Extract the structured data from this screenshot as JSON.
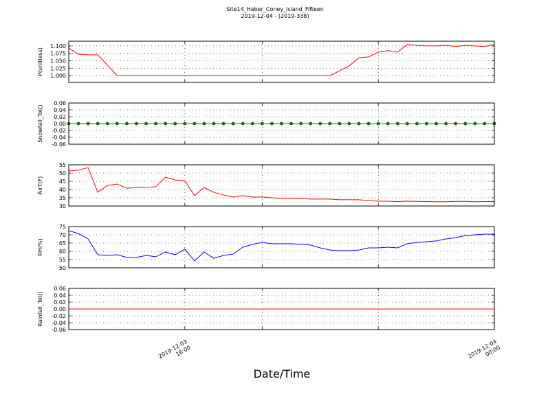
{
  "chart_data": {
    "type": "line",
    "title": "Site14_Haber_Coney_Island_Fifteen",
    "subtitle": "2019-12-04 - (2019-338)",
    "xlabel": "Date/Time",
    "x": [
      "2019-12-03 13:00",
      "2019-12-03 13:15",
      "2019-12-03 13:30",
      "2019-12-03 13:45",
      "2019-12-03 14:00",
      "2019-12-03 14:15",
      "2019-12-03 14:30",
      "2019-12-03 14:45",
      "2019-12-03 15:00",
      "2019-12-03 15:15",
      "2019-12-03 15:30",
      "2019-12-03 15:45",
      "2019-12-03 16:00",
      "2019-12-03 16:15",
      "2019-12-03 16:30",
      "2019-12-03 16:45",
      "2019-12-03 17:00",
      "2019-12-03 17:15",
      "2019-12-03 17:30",
      "2019-12-03 17:45",
      "2019-12-03 18:00",
      "2019-12-03 18:15",
      "2019-12-03 18:30",
      "2019-12-03 18:45",
      "2019-12-03 19:00",
      "2019-12-03 19:15",
      "2019-12-03 19:30",
      "2019-12-03 19:45",
      "2019-12-03 20:00",
      "2019-12-03 20:15",
      "2019-12-03 20:30",
      "2019-12-03 20:45",
      "2019-12-03 21:00",
      "2019-12-03 21:15",
      "2019-12-03 21:30",
      "2019-12-03 21:45",
      "2019-12-03 22:00",
      "2019-12-03 22:15",
      "2019-12-03 22:30",
      "2019-12-03 22:45",
      "2019-12-03 23:00",
      "2019-12-03 23:15",
      "2019-12-03 23:30",
      "2019-12-03 23:45",
      "2019-12-04 00:00"
    ],
    "xlim": [
      "2019-12-03 13:00",
      "2019-12-04 00:00"
    ],
    "xticks": [
      "2019-12-03 16:00",
      {
        "value": "2019-12-03 18:00",
        "label": null
      },
      {
        "value": "2019-12-03 21:00",
        "label": null
      },
      "2019-12-04 00:00"
    ],
    "grid": true,
    "panels": [
      {
        "type": "line",
        "ylabel": "P(unitless)",
        "ylim": [
          0.977,
          1.116
        ],
        "yticks": [
          {
            "value": 1.0,
            "label": "1.000"
          },
          {
            "value": 1.025,
            "label": "1.025"
          },
          {
            "value": 1.05,
            "label": "1.050"
          },
          {
            "value": 1.075,
            "label": "1.075"
          },
          {
            "value": 1.1,
            "label": "1.100"
          }
        ],
        "series": [
          {
            "color": "#ff0000",
            "marker": null,
            "values": [
              1.093,
              1.072,
              1.07,
              1.07,
              1.035,
              1.0,
              1.0,
              1.0,
              1.0,
              1.0,
              1.0,
              1.0,
              1.0,
              1.0,
              1.0,
              1.0,
              1.0,
              1.0,
              1.0,
              1.0,
              1.0,
              1.0,
              1.0,
              1.0,
              1.0,
              1.0,
              1.0,
              1.0,
              1.016,
              1.033,
              1.06,
              1.063,
              1.079,
              1.084,
              1.079,
              1.105,
              1.102,
              1.1,
              1.1,
              1.102,
              1.098,
              1.102,
              1.1,
              1.098,
              1.105
            ]
          }
        ]
      },
      {
        "type": "line",
        "ylabel": "Snowfall_Tot()",
        "ylim": [
          -0.06,
          0.06
        ],
        "yticks": [
          {
            "value": -0.06,
            "label": "-0.06"
          },
          {
            "value": -0.04,
            "label": "-0.04"
          },
          {
            "value": -0.02,
            "label": "-0.02"
          },
          {
            "value": 0,
            "label": "0.00"
          },
          {
            "value": 0.02,
            "label": "0.02"
          },
          {
            "value": 0.04,
            "label": "0.04"
          },
          {
            "value": 0.06,
            "label": "0.06"
          }
        ],
        "series": [
          {
            "color": "#008000",
            "marker": "o",
            "values": [
              0,
              0,
              0,
              0,
              0,
              0,
              0,
              0,
              0,
              0,
              0,
              0,
              0,
              0,
              0,
              0,
              0,
              0,
              0,
              0,
              0,
              0,
              0,
              0,
              0,
              0,
              0,
              0,
              0,
              0,
              0,
              0,
              0,
              0,
              0,
              0,
              0,
              0,
              0,
              0,
              0,
              0,
              0,
              0,
              0
            ]
          }
        ]
      },
      {
        "type": "line",
        "ylabel": "AirT(F)",
        "ylim": [
          30,
          55
        ],
        "yticks": [
          30,
          35,
          40,
          45,
          50,
          55
        ],
        "series": [
          {
            "color": "#ff0000",
            "marker": null,
            "values": [
              51.3,
              51.7,
              53.3,
              38.3,
              42.5,
              43.3,
              40.8,
              41.2,
              41.2,
              41.7,
              47.5,
              45.8,
              45.4,
              36.3,
              41.2,
              38.3,
              36.7,
              35.4,
              36.3,
              35.4,
              35.4,
              35.0,
              34.6,
              34.6,
              34.6,
              34.2,
              34.2,
              34.2,
              33.8,
              33.8,
              33.8,
              33.3,
              32.9,
              32.9,
              32.7,
              32.9,
              32.8,
              32.7,
              32.6,
              32.6,
              32.8,
              32.8,
              32.6,
              32.7,
              32.7
            ]
          }
        ]
      },
      {
        "type": "line",
        "ylabel": "RH(%)",
        "ylim": [
          50,
          75
        ],
        "yticks": [
          50,
          55,
          60,
          65,
          70,
          75
        ],
        "series": [
          {
            "color": "#0000ff",
            "marker": null,
            "values": [
              72.5,
              70.8,
              67.5,
              57.9,
              57.5,
              57.9,
              56.3,
              56.3,
              57.5,
              56.7,
              59.6,
              57.9,
              61.3,
              54.2,
              59.6,
              55.8,
              57.5,
              58.3,
              62.5,
              64.2,
              65.4,
              64.6,
              64.6,
              64.6,
              64.2,
              63.8,
              62.1,
              60.8,
              60.4,
              60.4,
              60.8,
              62.1,
              62.1,
              62.5,
              62.1,
              64.6,
              65.4,
              65.8,
              66.3,
              67.5,
              68.3,
              69.6,
              70.0,
              70.4,
              70.4
            ]
          }
        ]
      },
      {
        "type": "line",
        "ylabel": "Rainfall_Tot()",
        "ylim": [
          -0.06,
          0.06
        ],
        "yticks": [
          {
            "value": -0.06,
            "label": "-0.06"
          },
          {
            "value": -0.04,
            "label": "-0.04"
          },
          {
            "value": -0.02,
            "label": "-0.02"
          },
          {
            "value": 0,
            "label": "0.00"
          },
          {
            "value": 0.02,
            "label": "0.02"
          },
          {
            "value": 0.04,
            "label": "0.04"
          },
          {
            "value": 0.06,
            "label": "0.06"
          }
        ],
        "series": [
          {
            "color": "#ff0000",
            "marker": null,
            "values": [
              0,
              0,
              0,
              0,
              0,
              0,
              0,
              0,
              0,
              0,
              0,
              0,
              0,
              0,
              0,
              0,
              0,
              0,
              0,
              0,
              0,
              0,
              0,
              0,
              0,
              0,
              0,
              0,
              0,
              0,
              0,
              0,
              0,
              0,
              0,
              0,
              0,
              0,
              0,
              0,
              0,
              0,
              0,
              0,
              0
            ]
          }
        ]
      }
    ]
  }
}
